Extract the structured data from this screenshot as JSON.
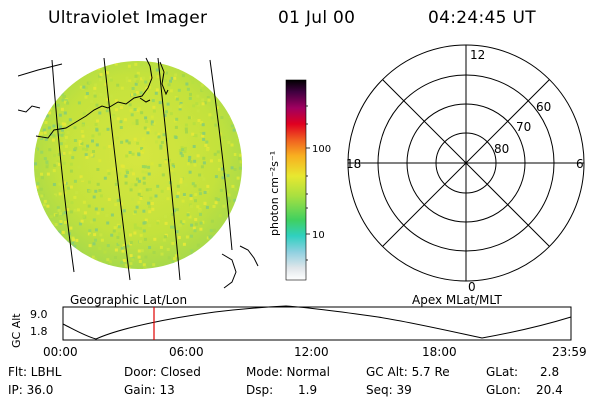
{
  "header": {
    "title": "Ultraviolet Imager",
    "date": "01 Jul 00",
    "time": "04:24:45 UT"
  },
  "colorbar": {
    "label": "photon cm⁻²s⁻¹",
    "ticks": [
      "100",
      "10"
    ]
  },
  "polar": {
    "mlt_labels": [
      "12",
      "18",
      "6",
      "0"
    ],
    "lat_labels": [
      "60",
      "70",
      "80"
    ]
  },
  "captions": {
    "left": "Geographic Lat/Lon",
    "right": "Apex  MLat/MLT"
  },
  "altitude": {
    "ylabel": "GC Alt",
    "yticks": [
      "9.0",
      "1.8"
    ],
    "xticks": [
      "00:00",
      "06:00",
      "12:00",
      "18:00",
      "23:59"
    ]
  },
  "info": {
    "flt": "Flt: LBHL",
    "ip": "IP: 36.0",
    "door": "Door: Closed",
    "gain": "Gain: 13",
    "mode": "Mode: Normal",
    "dsp_label": "Dsp:",
    "dsp_value": "1.9",
    "gcalt": "GC Alt: 5.7 Re",
    "seq": "Seq: 39",
    "glat_label": "GLat:",
    "glat_value": "2.8",
    "glon_label": "GLon:",
    "glon_value": "20.4"
  },
  "colors": {
    "marker": "#e00000",
    "image_base": "#c8e23a"
  }
}
